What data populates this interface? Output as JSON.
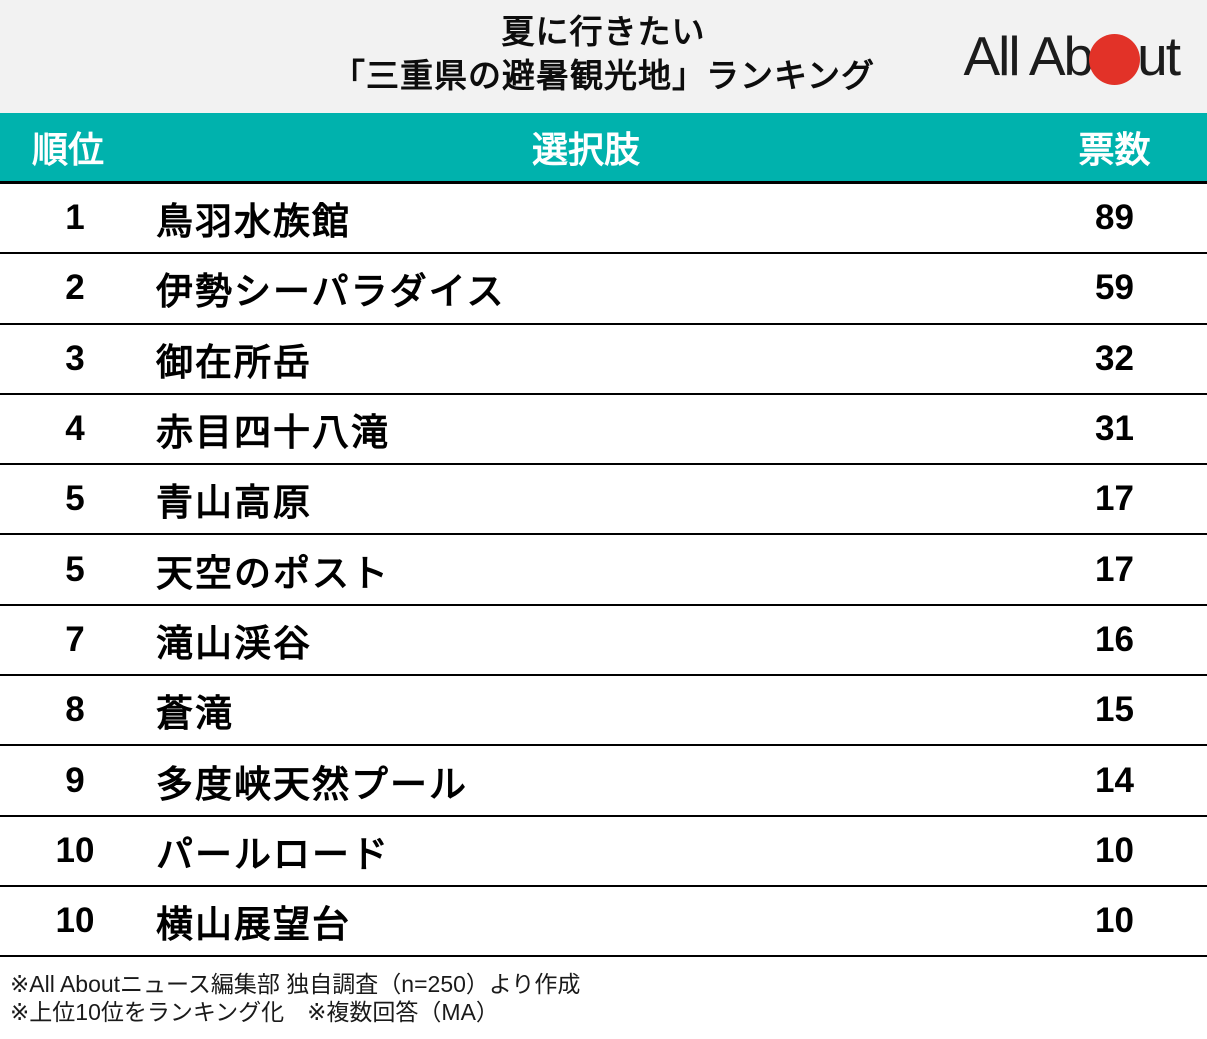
{
  "header": {
    "title_line1": "夏に行きたい",
    "title_line2": "「三重県の避暑観光地」ランキング",
    "logo": {
      "name": "All About",
      "text_part1": "All Ab",
      "text_part2": "ut",
      "dot_color": "#e23228"
    }
  },
  "table": {
    "columns": {
      "rank": "順位",
      "choice": "選択肢",
      "votes": "票数"
    },
    "rows": [
      {
        "rank": "1",
        "choice": "鳥羽水族館",
        "votes": "89"
      },
      {
        "rank": "2",
        "choice": "伊勢シーパラダイス",
        "votes": "59"
      },
      {
        "rank": "3",
        "choice": "御在所岳",
        "votes": "32"
      },
      {
        "rank": "4",
        "choice": "赤目四十八滝",
        "votes": "31"
      },
      {
        "rank": "5",
        "choice": "青山高原",
        "votes": "17"
      },
      {
        "rank": "5",
        "choice": "天空のポスト",
        "votes": "17"
      },
      {
        "rank": "7",
        "choice": "滝山渓谷",
        "votes": "16"
      },
      {
        "rank": "8",
        "choice": "蒼滝",
        "votes": "15"
      },
      {
        "rank": "9",
        "choice": "多度峡天然プール",
        "votes": "14"
      },
      {
        "rank": "10",
        "choice": "パールロード",
        "votes": "10"
      },
      {
        "rank": "10",
        "choice": "横山展望台",
        "votes": "10"
      }
    ]
  },
  "footer": {
    "note1": "※All Aboutニュース編集部 独自調査（n=250）より作成",
    "note2": "※上位10位をランキング化　※複数回答（MA）"
  },
  "colors": {
    "accent_teal": "#00b2ad",
    "header_bg": "#f2f2f2",
    "logo_red": "#e23228",
    "row_border": "#000000"
  },
  "chart_data": {
    "type": "table",
    "title": "夏に行きたい「三重県の避暑観光地」ランキング",
    "columns": [
      "順位",
      "選択肢",
      "票数"
    ],
    "categories": [
      "鳥羽水族館",
      "伊勢シーパラダイス",
      "御在所岳",
      "赤目四十八滝",
      "青山高原",
      "天空のポスト",
      "滝山渓谷",
      "蒼滝",
      "多度峡天然プール",
      "パールロード",
      "横山展望台"
    ],
    "ranks": [
      1,
      2,
      3,
      4,
      5,
      5,
      7,
      8,
      9,
      10,
      10
    ],
    "values": [
      89,
      59,
      32,
      31,
      17,
      17,
      16,
      15,
      14,
      10,
      10
    ],
    "source_note": "All Aboutニュース編集部 独自調査（n=250）より作成、上位10位をランキング化、複数回答（MA）"
  }
}
